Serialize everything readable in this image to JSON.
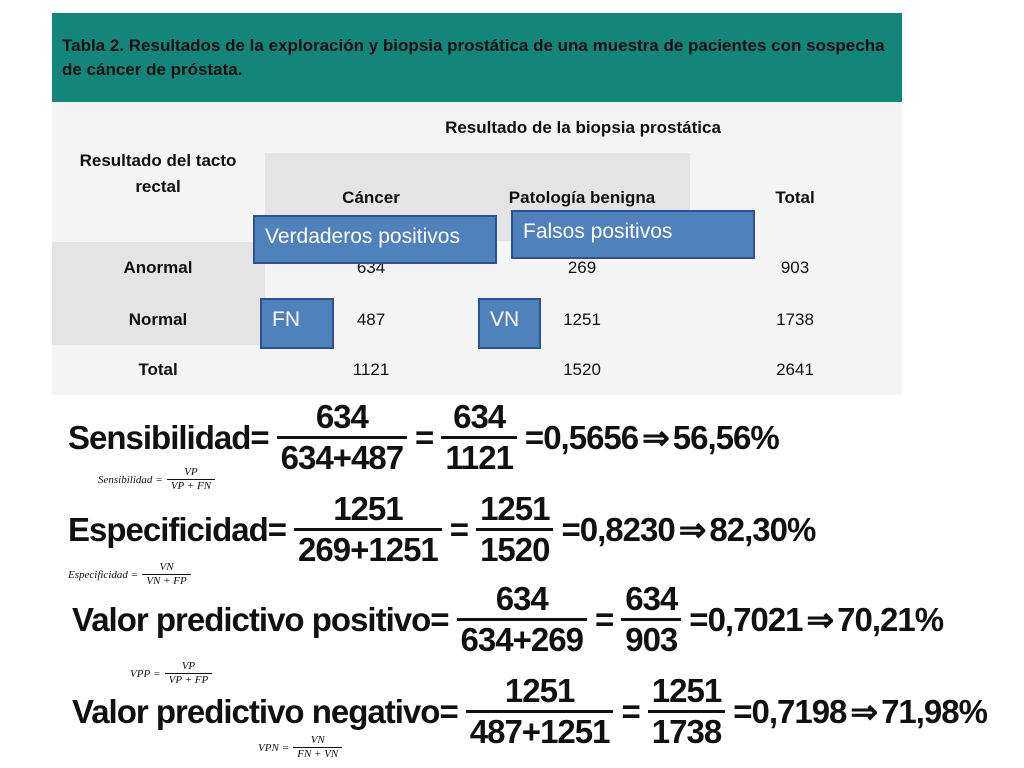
{
  "header": {
    "title": "Tabla 2. Resultados de la exploración y biopsia prostática de una muestra de pacientes con sospecha de cáncer de próstata."
  },
  "table": {
    "row_header": "Resultado del tacto rectal",
    "group_header": "Resultado de la biopsia prostática",
    "columns": [
      "Cáncer",
      "Patología benigna",
      "Total"
    ],
    "rows": [
      [
        "Anormal",
        "634",
        "269",
        "903"
      ],
      [
        "Normal",
        "487",
        "1251",
        "1738"
      ],
      [
        "Total",
        "1121",
        "1520",
        "2641"
      ]
    ]
  },
  "callouts": [
    "Verdaderos positivos",
    "Falsos positivos",
    "FN",
    "VN"
  ],
  "formulas": [
    {
      "name": "Sensibilidad",
      "num1": "634",
      "den1": "634+487",
      "num2": "634",
      "den2": "1121",
      "decimal": "0,5656",
      "percent": "56,56%"
    },
    {
      "name": "Especificidad",
      "num1": "1251",
      "den1": "269+1251",
      "num2": "1251",
      "den2": "1520",
      "decimal": "0,8230",
      "percent": "82,30%"
    },
    {
      "name": "Valor predictivo positivo",
      "num1": "634",
      "den1": "634+269",
      "num2": "634",
      "den2": "903",
      "decimal": "0,7021",
      "percent": "70,21%"
    },
    {
      "name": "Valor predictivo negativo",
      "num1": "1251",
      "den1": "487+1251",
      "num2": "1251",
      "den2": "1738",
      "decimal": "0,7198",
      "percent": "71,98%"
    }
  ],
  "definitions": [
    {
      "lhs": "Sensibilidad",
      "num": "VP",
      "den": "VP + FN"
    },
    {
      "lhs": "Especificidad",
      "num": "VN",
      "den": "VN + FP"
    },
    {
      "lhs": "VPP",
      "num": "VP",
      "den": "VP + FP"
    },
    {
      "lhs": "VPN",
      "num": "VN",
      "den": "FN + VN"
    }
  ]
}
